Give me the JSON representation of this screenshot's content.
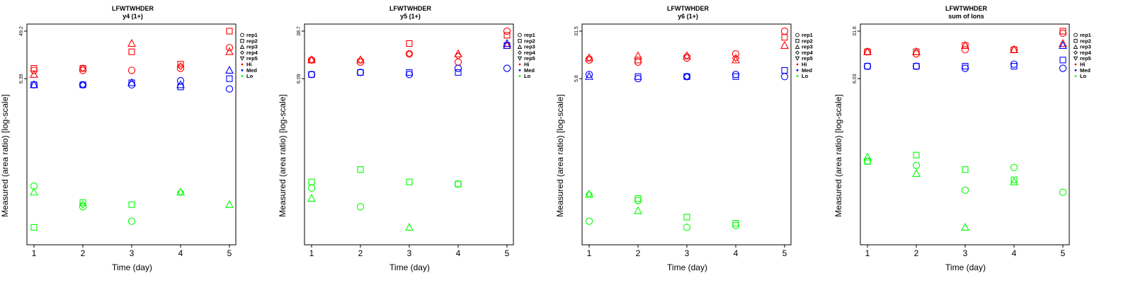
{
  "chart_data": [
    {
      "type": "scatter",
      "title": "LFWTWHDER",
      "subtitle": "y4 (1+)",
      "xlabel": "Time (day)",
      "ylabel": "Measured (area ratio) [log-scale]",
      "x_ticks": [
        "1",
        "2",
        "3",
        "4",
        "5"
      ],
      "y_ticks": [
        "49.2",
        "6.39"
      ],
      "y_scale": "log",
      "legend": [
        "rep1",
        "rep2",
        "rep3",
        "rep4",
        "rep5",
        "Hi",
        "Med",
        "Lo"
      ],
      "legend_position": "top-right",
      "colors": {
        "Hi": "#ff0000",
        "Med": "#0000ff",
        "Lo": "#00ff00"
      },
      "series": [
        {
          "name": "Hi",
          "values": [
            [
              1,
              "rep1",
              0.81
            ],
            [
              1,
              "rep2",
              0.82
            ],
            [
              1,
              "rep3",
              0.79
            ],
            [
              2,
              "rep1",
              0.81
            ],
            [
              2,
              "rep2",
              0.82
            ],
            [
              2,
              "rep4",
              0.82
            ],
            [
              3,
              "rep1",
              0.81
            ],
            [
              3,
              "rep2",
              0.9
            ],
            [
              3,
              "rep3",
              0.94
            ],
            [
              4,
              "rep1",
              0.82
            ],
            [
              4,
              "rep2",
              0.84
            ],
            [
              4,
              "rep4",
              0.83
            ],
            [
              5,
              "rep1",
              0.92
            ],
            [
              5,
              "rep2",
              1.0
            ],
            [
              5,
              "rep3",
              0.9
            ]
          ]
        },
        {
          "name": "Med",
          "values": [
            [
              1,
              "rep1",
              0.74
            ],
            [
              1,
              "rep2",
              0.74
            ],
            [
              1,
              "rep3",
              0.74
            ],
            [
              2,
              "rep1",
              0.74
            ],
            [
              2,
              "rep2",
              0.74
            ],
            [
              2,
              "rep4",
              0.74
            ],
            [
              3,
              "rep1",
              0.74
            ],
            [
              3,
              "rep2",
              0.75
            ],
            [
              3,
              "rep3",
              0.75
            ],
            [
              4,
              "rep1",
              0.76
            ],
            [
              4,
              "rep2",
              0.73
            ],
            [
              4,
              "rep3",
              0.74
            ],
            [
              5,
              "rep1",
              0.72
            ],
            [
              5,
              "rep2",
              0.77
            ],
            [
              5,
              "rep3",
              0.81
            ]
          ]
        },
        {
          "name": "Lo",
          "values": [
            [
              1,
              "rep1",
              0.25
            ],
            [
              1,
              "rep2",
              0.05
            ],
            [
              1,
              "rep3",
              0.22
            ],
            [
              2,
              "rep1",
              0.15
            ],
            [
              2,
              "rep2",
              0.17
            ],
            [
              2,
              "rep4",
              0.16
            ],
            [
              3,
              "rep1",
              0.08
            ],
            [
              3,
              "rep2",
              0.16
            ],
            [
              4,
              "rep3",
              0.22
            ],
            [
              4,
              "rep4",
              0.22
            ],
            [
              5,
              "rep3",
              0.16
            ]
          ]
        }
      ]
    },
    {
      "type": "scatter",
      "title": "LFWTWHDER",
      "subtitle": "y5 (1+)",
      "xlabel": "Time (day)",
      "ylabel": "Measured (area ratio) [log-scale]",
      "x_ticks": [
        "1",
        "2",
        "3",
        "4",
        "5"
      ],
      "y_ticks": [
        "38.7",
        "6.09"
      ],
      "y_scale": "log",
      "legend": [
        "rep1",
        "rep2",
        "rep3",
        "rep4",
        "rep5",
        "Hi",
        "Med",
        "Lo"
      ],
      "legend_position": "top-right",
      "colors": {
        "Hi": "#ff0000",
        "Med": "#0000ff",
        "Lo": "#00ff00"
      },
      "series": [
        {
          "name": "Hi",
          "values": [
            [
              1,
              "rep1",
              0.86
            ],
            [
              1,
              "rep3",
              0.86
            ],
            [
              1,
              "rep4",
              0.86
            ],
            [
              2,
              "rep1",
              0.85
            ],
            [
              2,
              "rep3",
              0.86
            ],
            [
              2,
              "rep4",
              0.86
            ],
            [
              3,
              "rep1",
              0.89
            ],
            [
              3,
              "rep2",
              0.94
            ],
            [
              3,
              "rep4",
              0.89
            ],
            [
              4,
              "rep1",
              0.85
            ],
            [
              4,
              "rep3",
              0.89
            ],
            [
              4,
              "rep4",
              0.88
            ],
            [
              5,
              "rep1",
              1.0
            ],
            [
              5,
              "rep2",
              0.98
            ],
            [
              5,
              "rep3",
              0.93
            ]
          ]
        },
        {
          "name": "Med",
          "values": [
            [
              1,
              "rep1",
              0.79
            ],
            [
              1,
              "rep2",
              0.79
            ],
            [
              2,
              "rep1",
              0.8
            ],
            [
              2,
              "rep2",
              0.8
            ],
            [
              3,
              "rep1",
              0.79
            ],
            [
              3,
              "rep2",
              0.8
            ],
            [
              4,
              "rep1",
              0.82
            ],
            [
              4,
              "rep2",
              0.8
            ],
            [
              5,
              "rep1",
              0.82
            ],
            [
              5,
              "rep3",
              0.94
            ],
            [
              5,
              "rep2",
              0.93
            ]
          ]
        },
        {
          "name": "Lo",
          "values": [
            [
              1,
              "rep1",
              0.24
            ],
            [
              1,
              "rep2",
              0.27
            ],
            [
              1,
              "rep3",
              0.19
            ],
            [
              2,
              "rep1",
              0.15
            ],
            [
              2,
              "rep2",
              0.33
            ],
            [
              3,
              "rep2",
              0.27
            ],
            [
              3,
              "rep3",
              0.05
            ],
            [
              4,
              "rep1",
              0.26
            ],
            [
              4,
              "rep2",
              0.26
            ]
          ]
        }
      ]
    },
    {
      "type": "scatter",
      "title": "LFWTWHDER",
      "subtitle": "y6 (1+)",
      "xlabel": "Time (day)",
      "ylabel": "Measured (area ratio) [log-scale]",
      "x_ticks": [
        "1",
        "2",
        "3",
        "4",
        "5"
      ],
      "y_ticks": [
        "31.5",
        "5.8"
      ],
      "y_scale": "log",
      "legend": [
        "rep1",
        "rep2",
        "rep3",
        "rep4",
        "rep5",
        "Hi",
        "Med",
        "Lo"
      ],
      "legend_position": "top-right",
      "colors": {
        "Hi": "#ff0000",
        "Med": "#0000ff",
        "Lo": "#00ff00"
      },
      "series": [
        {
          "name": "Hi",
          "values": [
            [
              1,
              "rep1",
              0.86
            ],
            [
              1,
              "rep3",
              0.87
            ],
            [
              1,
              "rep4",
              0.87
            ],
            [
              2,
              "rep1",
              0.85
            ],
            [
              2,
              "rep2",
              0.86
            ],
            [
              2,
              "rep3",
              0.88
            ],
            [
              3,
              "rep1",
              0.87
            ],
            [
              3,
              "rep3",
              0.88
            ],
            [
              3,
              "rep4",
              0.88
            ],
            [
              4,
              "rep1",
              0.89
            ],
            [
              4,
              "rep3",
              0.86
            ],
            [
              4,
              "rep4",
              0.87
            ],
            [
              5,
              "rep1",
              1.0
            ],
            [
              5,
              "rep2",
              0.97
            ],
            [
              5,
              "rep3",
              0.93
            ]
          ]
        },
        {
          "name": "Med",
          "values": [
            [
              1,
              "rep1",
              0.79
            ],
            [
              1,
              "rep3",
              0.78
            ],
            [
              2,
              "rep1",
              0.77
            ],
            [
              2,
              "rep2",
              0.78
            ],
            [
              3,
              "rep1",
              0.78
            ],
            [
              3,
              "rep2",
              0.78
            ],
            [
              3,
              "rep4",
              0.78
            ],
            [
              4,
              "rep1",
              0.79
            ],
            [
              4,
              "rep2",
              0.78
            ],
            [
              5,
              "rep1",
              0.78
            ],
            [
              5,
              "rep2",
              0.81
            ]
          ]
        },
        {
          "name": "Lo",
          "values": [
            [
              1,
              "rep1",
              0.08
            ],
            [
              1,
              "rep3",
              0.21
            ],
            [
              1,
              "rep4",
              0.21
            ],
            [
              2,
              "rep2",
              0.19
            ],
            [
              2,
              "rep1",
              0.18
            ],
            [
              2,
              "rep3",
              0.13
            ],
            [
              3,
              "rep2",
              0.1
            ],
            [
              3,
              "rep1",
              0.05
            ],
            [
              4,
              "rep1",
              0.06
            ],
            [
              4,
              "rep2",
              0.07
            ]
          ]
        }
      ]
    },
    {
      "type": "scatter",
      "title": "LFWTWHDER",
      "subtitle": "sum of Ions",
      "xlabel": "Time (day)",
      "ylabel": "Measured (area ratio) [log-scale]",
      "x_ticks": [
        "1",
        "2",
        "3",
        "4",
        "5"
      ],
      "y_ticks": [
        "31.6",
        "6.03"
      ],
      "y_scale": "log",
      "legend": [
        "rep1",
        "rep2",
        "rep3",
        "rep4",
        "rep5",
        "Hi",
        "Med",
        "Lo"
      ],
      "legend_position": "top-right",
      "colors": {
        "Hi": "#ff0000",
        "Med": "#0000ff",
        "Lo": "#00ff00"
      },
      "series": [
        {
          "name": "Hi",
          "values": [
            [
              1,
              "rep1",
              0.9
            ],
            [
              1,
              "rep2",
              0.9
            ],
            [
              1,
              "rep3",
              0.9
            ],
            [
              2,
              "rep1",
              0.89
            ],
            [
              2,
              "rep2",
              0.9
            ],
            [
              2,
              "rep3",
              0.9
            ],
            [
              3,
              "rep1",
              0.91
            ],
            [
              3,
              "rep2",
              0.93
            ],
            [
              3,
              "rep3",
              0.93
            ],
            [
              4,
              "rep1",
              0.91
            ],
            [
              4,
              "rep2",
              0.91
            ],
            [
              4,
              "rep3",
              0.91
            ],
            [
              5,
              "rep1",
              0.99
            ],
            [
              5,
              "rep2",
              1.0
            ],
            [
              5,
              "rep3",
              0.94
            ]
          ]
        },
        {
          "name": "Med",
          "values": [
            [
              1,
              "rep1",
              0.83
            ],
            [
              1,
              "rep2",
              0.83
            ],
            [
              2,
              "rep1",
              0.83
            ],
            [
              2,
              "rep2",
              0.83
            ],
            [
              3,
              "rep1",
              0.82
            ],
            [
              3,
              "rep2",
              0.83
            ],
            [
              4,
              "rep1",
              0.84
            ],
            [
              4,
              "rep2",
              0.83
            ],
            [
              5,
              "rep1",
              0.82
            ],
            [
              5,
              "rep2",
              0.86
            ],
            [
              5,
              "rep3",
              0.93
            ]
          ]
        },
        {
          "name": "Lo",
          "values": [
            [
              1,
              "rep1",
              0.37
            ],
            [
              1,
              "rep2",
              0.37
            ],
            [
              1,
              "rep3",
              0.39
            ],
            [
              2,
              "rep1",
              0.35
            ],
            [
              2,
              "rep2",
              0.4
            ],
            [
              2,
              "rep3",
              0.31
            ],
            [
              3,
              "rep1",
              0.23
            ],
            [
              3,
              "rep2",
              0.33
            ],
            [
              3,
              "rep3",
              0.05
            ],
            [
              4,
              "rep1",
              0.34
            ],
            [
              4,
              "rep2",
              0.28
            ],
            [
              4,
              "rep3",
              0.27
            ],
            [
              5,
              "rep1",
              0.22
            ]
          ]
        }
      ]
    }
  ]
}
